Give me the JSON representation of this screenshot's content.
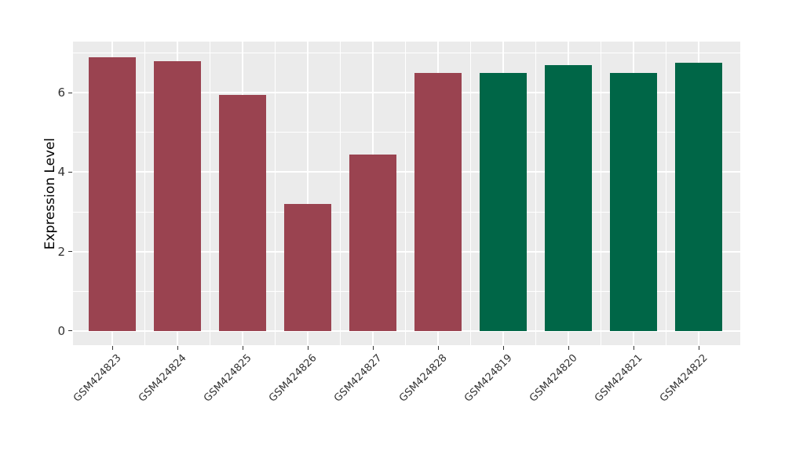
{
  "chart_data": {
    "type": "bar",
    "title": "",
    "xlabel": "",
    "ylabel": "Expression Level",
    "categories": [
      "GSM424823",
      "GSM424824",
      "GSM424825",
      "GSM424826",
      "GSM424827",
      "GSM424828",
      "GSM424819",
      "GSM424820",
      "GSM424821",
      "GSM424822"
    ],
    "values": [
      6.9,
      6.8,
      5.95,
      3.2,
      4.45,
      6.5,
      6.5,
      6.7,
      6.5,
      6.75
    ],
    "bar_colors": [
      "#9A4350",
      "#9A4350",
      "#9A4350",
      "#9A4350",
      "#9A4350",
      "#9A4350",
      "#006647",
      "#006647",
      "#006647",
      "#006647"
    ],
    "yticks": [
      "0",
      "2",
      "4",
      "6"
    ],
    "ytick_values": [
      0,
      2,
      4,
      6
    ],
    "minor_ytick_values": [
      1,
      3,
      5,
      7
    ],
    "ylim": [
      -0.36,
      7.29
    ],
    "grid": "major-and-minor",
    "legend": "none",
    "x_tick_rotation_deg": 45,
    "panel_background": "#EBEBEB",
    "gridline_color": "#FFFFFF",
    "tick_mark_color": "#333333",
    "tick_label_color": "#333333",
    "axis_title_color": "#000000"
  }
}
